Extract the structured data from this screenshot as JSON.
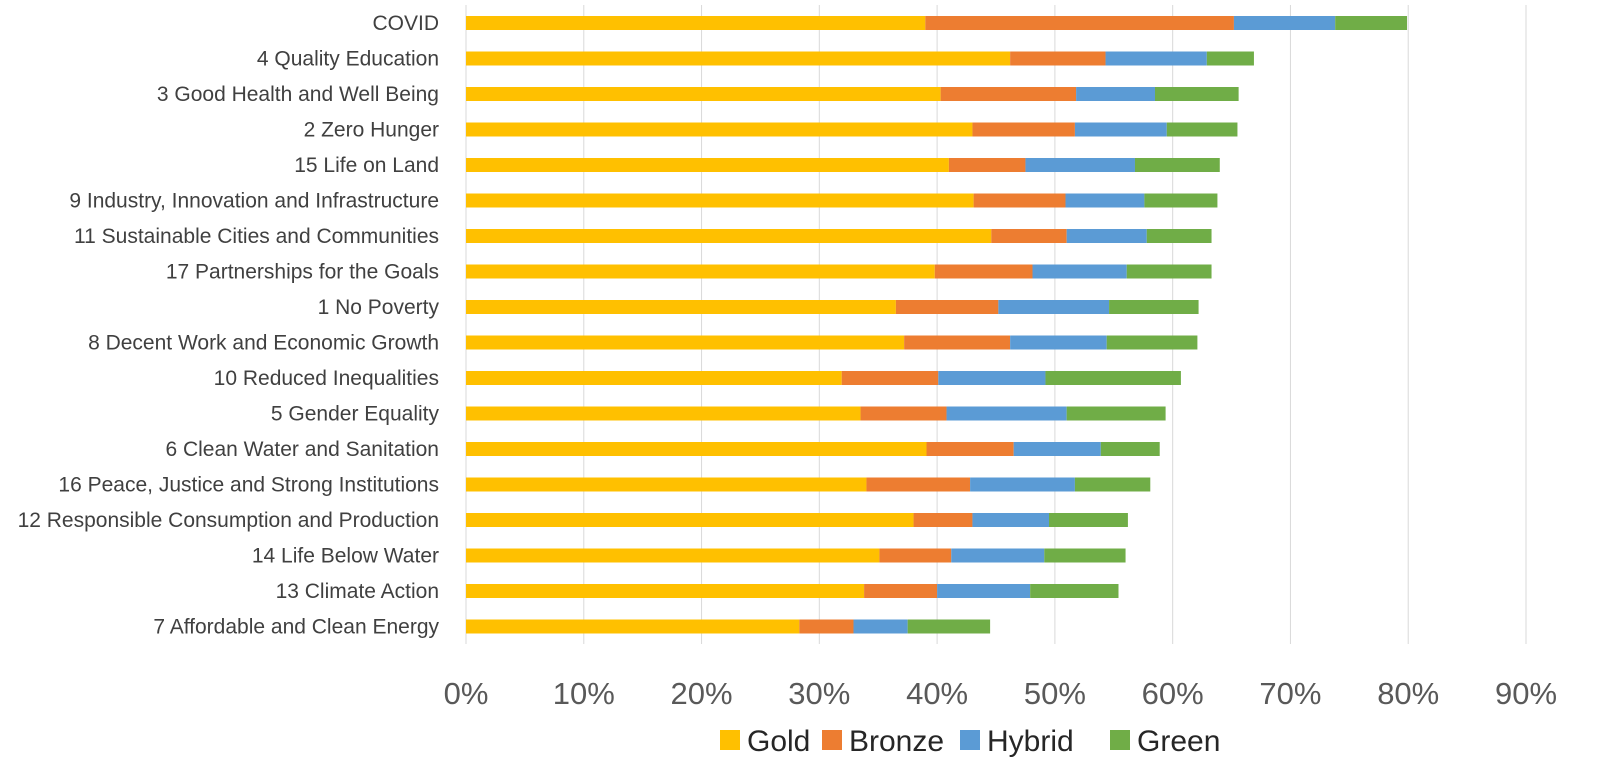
{
  "chart_data": {
    "type": "bar",
    "orientation": "horizontal",
    "stacked": true,
    "categories": [
      "COVID",
      "4 Quality Education",
      "3 Good Health and Well Being",
      "2 Zero Hunger",
      "15 Life on Land",
      "9 Industry, Innovation and Infrastructure",
      "11 Sustainable Cities and Communities",
      "17 Partnerships for the Goals",
      "1 No Poverty",
      "8 Decent Work and Economic Growth",
      "10 Reduced Inequalities",
      "5 Gender Equality",
      "6 Clean Water and Sanitation",
      "16 Peace, Justice and Strong Institutions",
      "12 Responsible Consumption and Production",
      "14 Life Below Water",
      "13 Climate Action",
      "7 Affordable and Clean Energy"
    ],
    "series": [
      {
        "name": "Gold",
        "color": "#FFC000",
        "values": [
          39.0,
          46.2,
          40.3,
          43.0,
          41.0,
          43.1,
          44.6,
          39.8,
          36.5,
          37.2,
          31.9,
          33.5,
          39.1,
          34.0,
          38.0,
          35.1,
          33.8,
          28.3
        ]
      },
      {
        "name": "Bronze",
        "color": "#ED7D31",
        "values": [
          26.2,
          8.1,
          11.5,
          8.7,
          6.5,
          7.8,
          6.4,
          8.3,
          8.7,
          9.0,
          8.2,
          7.3,
          7.4,
          8.8,
          5.0,
          6.1,
          6.2,
          4.6
        ]
      },
      {
        "name": "Hybrid",
        "color": "#5B9BD5",
        "values": [
          8.6,
          8.6,
          6.7,
          7.8,
          9.3,
          6.7,
          6.8,
          8.0,
          9.4,
          8.2,
          9.1,
          10.2,
          7.4,
          8.9,
          6.5,
          7.9,
          7.9,
          4.6
        ]
      },
      {
        "name": "Green",
        "color": "#70AD47",
        "values": [
          6.1,
          4.0,
          7.1,
          6.0,
          7.2,
          6.2,
          5.5,
          7.2,
          7.6,
          7.7,
          11.5,
          8.4,
          5.0,
          6.4,
          6.7,
          6.9,
          7.5,
          7.0
        ]
      }
    ],
    "x_ticks": [
      "0%",
      "10%",
      "20%",
      "30%",
      "40%",
      "50%",
      "60%",
      "70%",
      "80%",
      "90%"
    ],
    "xlim": [
      0,
      90
    ],
    "grid": "vertical",
    "legend_position": "bottom"
  }
}
